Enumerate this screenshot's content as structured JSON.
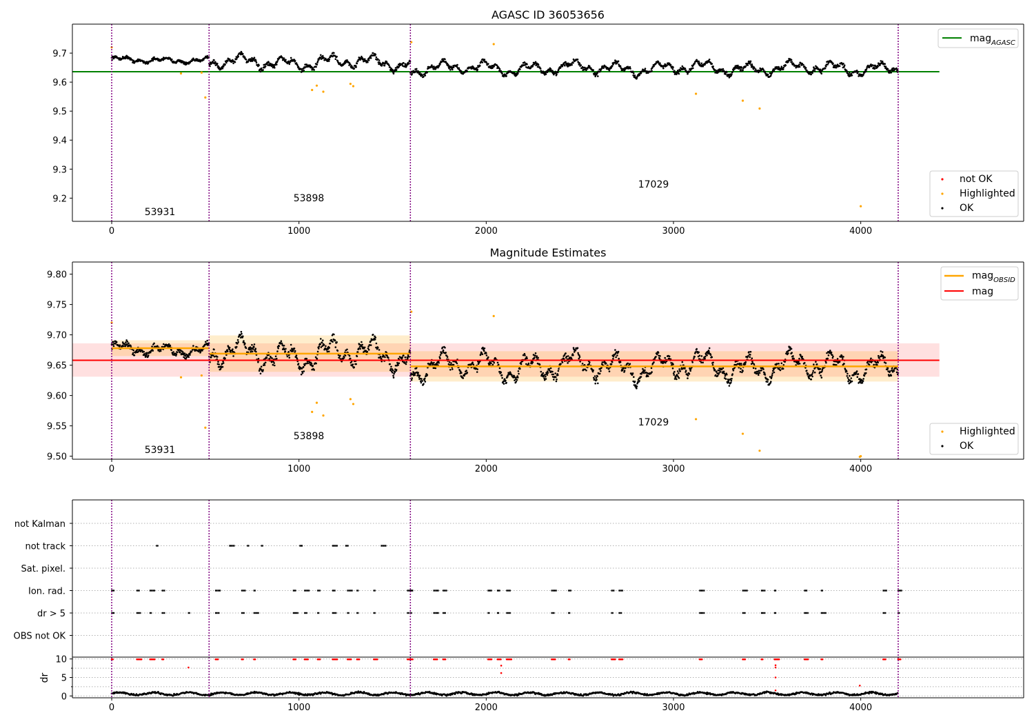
{
  "figure": {
    "colors": {
      "ok": "#000000",
      "not_ok": "#ff0000",
      "highlighted": "#ffa500",
      "mag_agasc": "#008000",
      "mag_obsid": "#ffa500",
      "mag": "#ff0000",
      "obsid_boundary": "#800080"
    }
  },
  "chart_data": [
    {
      "type": "scatter",
      "title": "AGASC ID 36053656",
      "xlabel": "",
      "ylabel": "",
      "xlim": [
        -210,
        4870
      ],
      "ylim": [
        9.12,
        9.8
      ],
      "xticks": [
        "0",
        "1000",
        "2000",
        "3000",
        "4000"
      ],
      "yticks": [
        "9.2",
        "9.3",
        "9.4",
        "9.5",
        "9.6",
        "9.7"
      ],
      "grid": false,
      "legends": [
        {
          "location": "upper right",
          "entries": [
            {
              "label": "mag",
              "sub": "AGASC",
              "kind": "line",
              "color": "#008000"
            }
          ]
        },
        {
          "location": "lower right",
          "entries": [
            {
              "label": "not OK",
              "kind": "dot",
              "color": "#ff0000"
            },
            {
              "label": "Highlighted",
              "kind": "dot",
              "color": "#ffa500"
            },
            {
              "label": "OK",
              "kind": "dot",
              "color": "#000000"
            }
          ]
        }
      ],
      "vlines": [
        0,
        520,
        1595,
        4200
      ],
      "obsid_labels": [
        {
          "text": "53931",
          "x": 250,
          "y": 9.15
        },
        {
          "text": "53898",
          "x": 1055,
          "y": 9.19
        },
        {
          "text": "17029",
          "x": 2900,
          "y": 9.24
        }
      ],
      "hlines": [
        {
          "name": "mag_AGASC",
          "y": 9.636,
          "x": [
            -210,
            4420
          ]
        }
      ],
      "series": [
        {
          "name": "OK",
          "segments": [
            {
              "x": [
                0,
                520
              ],
              "y": 9.676,
              "amp": 0.012,
              "noise": 0.012
            },
            {
              "x": 520,
              "y": [
                1595
              ],
              "note": ""
            }
          ]
        }
      ],
      "ok_segments": [
        {
          "x0": 0,
          "x1": 520,
          "center": 9.676,
          "amp": 0.012,
          "noise": 0.012
        },
        {
          "x0": 520,
          "x1": 1595,
          "center": 9.668,
          "amp": 0.03,
          "noise": 0.018
        },
        {
          "x0": 1595,
          "x1": 4200,
          "center": 9.648,
          "amp": 0.028,
          "noise": 0.017
        }
      ],
      "highlighted": [
        {
          "x": 0,
          "y": 9.72
        },
        {
          "x": 370,
          "y": 9.63
        },
        {
          "x": 480,
          "y": 9.633
        },
        {
          "x": 500,
          "y": 9.547
        },
        {
          "x": 1070,
          "y": 9.573
        },
        {
          "x": 1095,
          "y": 9.588
        },
        {
          "x": 1130,
          "y": 9.567
        },
        {
          "x": 1275,
          "y": 9.594
        },
        {
          "x": 1290,
          "y": 9.586
        },
        {
          "x": 1600,
          "y": 9.738
        },
        {
          "x": 2040,
          "y": 9.731
        },
        {
          "x": 3120,
          "y": 9.56
        },
        {
          "x": 3370,
          "y": 9.536
        },
        {
          "x": 3460,
          "y": 9.509
        },
        {
          "x": 4000,
          "y": 9.172
        }
      ]
    },
    {
      "type": "scatter",
      "title": "Magnitude Estimates",
      "xlabel": "",
      "ylabel": "",
      "xlim": [
        -210,
        4870
      ],
      "ylim": [
        9.495,
        9.82
      ],
      "xticks": [
        "0",
        "1000",
        "2000",
        "3000",
        "4000"
      ],
      "yticks": [
        "9.50",
        "9.55",
        "9.60",
        "9.65",
        "9.70",
        "9.75",
        "9.80"
      ],
      "grid": false,
      "legends": [
        {
          "location": "upper right",
          "entries": [
            {
              "label": "mag",
              "sub": "OBSID",
              "kind": "line",
              "color": "#ffa500"
            },
            {
              "label": "mag",
              "kind": "line",
              "color": "#ff0000"
            }
          ]
        },
        {
          "location": "lower right",
          "entries": [
            {
              "label": "Highlighted",
              "kind": "dot",
              "color": "#ffa500"
            },
            {
              "label": "OK",
              "kind": "dot",
              "color": "#000000"
            }
          ]
        }
      ],
      "vlines": [
        0,
        520,
        1595,
        4200
      ],
      "obsid_labels": [
        {
          "text": "53931",
          "x": 250,
          "y": 9.507
        },
        {
          "text": "53898",
          "x": 1055,
          "y": 9.531
        },
        {
          "text": "17029",
          "x": 2900,
          "y": 9.556
        }
      ],
      "mag": {
        "value": 9.658,
        "band": [
          9.631,
          9.686
        ],
        "x": [
          -210,
          4420
        ]
      },
      "mag_obsid": [
        {
          "x": [
            0,
            520
          ],
          "value": 9.678,
          "band": [
            9.665,
            9.691
          ]
        },
        {
          "x": [
            520,
            1595
          ],
          "value": 9.669,
          "band": [
            9.639,
            9.699
          ]
        },
        {
          "x": [
            1595,
            4200
          ],
          "value": 9.648,
          "band": [
            9.623,
            9.673
          ]
        }
      ],
      "highlighted": [
        {
          "x": 0,
          "y": 9.72
        },
        {
          "x": 370,
          "y": 9.63
        },
        {
          "x": 480,
          "y": 9.633
        },
        {
          "x": 500,
          "y": 9.547
        },
        {
          "x": 1070,
          "y": 9.573
        },
        {
          "x": 1095,
          "y": 9.588
        },
        {
          "x": 1130,
          "y": 9.567
        },
        {
          "x": 1275,
          "y": 9.594
        },
        {
          "x": 1290,
          "y": 9.586
        },
        {
          "x": 1600,
          "y": 9.738
        },
        {
          "x": 2040,
          "y": 9.731
        },
        {
          "x": 3120,
          "y": 9.561
        },
        {
          "x": 3370,
          "y": 9.537
        },
        {
          "x": 3460,
          "y": 9.509
        },
        {
          "x": 3995,
          "y": 9.499
        },
        {
          "x": 4000,
          "y": 9.5
        }
      ]
    },
    {
      "type": "scatter",
      "title": "",
      "xlabel": "",
      "ylabel": "",
      "xlim": [
        -210,
        4870
      ],
      "categories": [
        "not Kalman",
        "not track",
        "Sat. pixel.",
        "Ion. rad.",
        "dr > 5",
        "OBS not OK"
      ],
      "grid": true,
      "vlines": [
        0,
        520,
        1595,
        4200
      ],
      "flags": {
        "not track": [
          240,
          630,
          725,
          800,
          1005,
          1180,
          1250,
          1440
        ],
        "Ion. rad.": [
          0,
          135,
          205,
          270,
          555,
          695,
          760,
          970,
          1030,
          1100,
          1180,
          1260,
          1310,
          1400,
          1580,
          1595,
          1720,
          1770,
          2010,
          2060,
          2110,
          2350,
          2440,
          2670,
          2710,
          3140,
          3370,
          3470,
          3540,
          3700,
          3790,
          4120,
          4200
        ],
        "dr > 5": [
          0,
          135,
          205,
          270,
          410,
          555,
          695,
          760,
          970,
          1030,
          1100,
          1180,
          1260,
          1310,
          1400,
          1580,
          1595,
          1720,
          1770,
          2010,
          2060,
          2110,
          2350,
          2440,
          2670,
          2710,
          3140,
          3370,
          3470,
          3540,
          3700,
          3790,
          4120,
          4200
        ]
      }
    },
    {
      "type": "scatter",
      "title": "",
      "xlabel": "",
      "ylabel": "dr",
      "xlim": [
        -210,
        4870
      ],
      "ylim": [
        -0.5,
        10.5
      ],
      "xticks": [
        "0",
        "1000",
        "2000",
        "3000",
        "4000"
      ],
      "yticks": [
        "0",
        "5",
        "10"
      ],
      "grid": true,
      "vlines": [
        0,
        520,
        1595,
        4200
      ],
      "baseline": {
        "mean": 0.6,
        "spread": 0.5
      },
      "not_ok_capped": [
        0,
        135,
        205,
        270,
        555,
        695,
        760,
        970,
        1030,
        1100,
        1180,
        1260,
        1310,
        1400,
        1580,
        1595,
        1720,
        1770,
        2010,
        2060,
        2110,
        2350,
        2440,
        2670,
        2710,
        3140,
        3370,
        3470,
        3540,
        3700,
        3790,
        4120,
        4200
      ],
      "not_ok_other": [
        {
          "x": 410,
          "y": 7.7
        },
        {
          "x": 2080,
          "y": 8.2
        },
        {
          "x": 2080,
          "y": 6.2
        },
        {
          "x": 3545,
          "y": 8.3
        },
        {
          "x": 3545,
          "y": 7.7
        },
        {
          "x": 3545,
          "y": 5.0
        },
        {
          "x": 3545,
          "y": 1.5
        },
        {
          "x": 3995,
          "y": 2.8
        }
      ]
    }
  ]
}
